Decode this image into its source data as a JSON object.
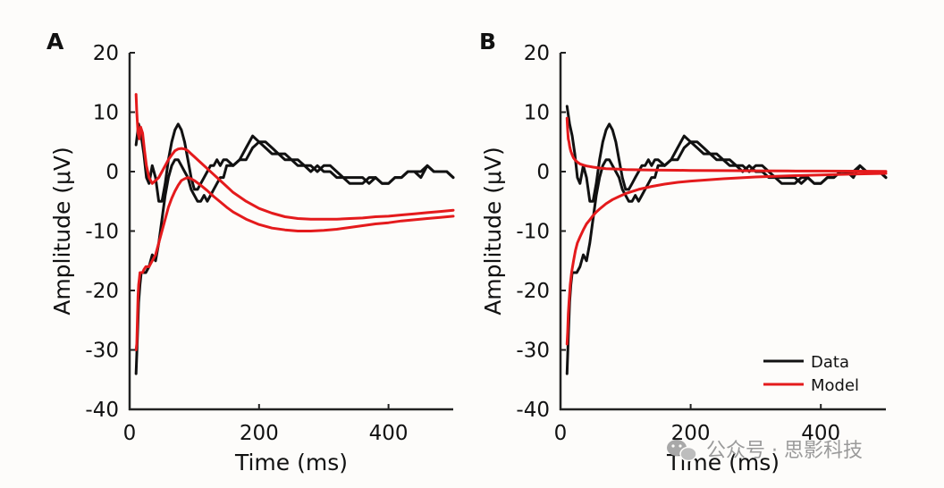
{
  "chart_data": [
    {
      "type": "line",
      "panel": "A",
      "xlabel": "Time (ms)",
      "ylabel": "Amplitude (μV)",
      "xlim": [
        0,
        500
      ],
      "ylim": [
        -40,
        20
      ],
      "xticks": [
        0,
        200,
        400
      ],
      "yticks": [
        20,
        10,
        0,
        -10,
        -20,
        -30,
        -40
      ],
      "series": [
        {
          "name": "Data",
          "color": "#111111",
          "x": [
            10,
            14,
            18,
            22,
            26,
            30,
            35,
            40,
            45,
            50,
            55,
            60,
            65,
            70,
            75,
            80,
            85,
            90,
            95,
            100,
            105,
            110,
            115,
            120,
            125,
            130,
            135,
            140,
            145,
            150,
            160,
            170,
            180,
            190,
            200,
            210,
            220,
            230,
            240,
            250,
            260,
            270,
            280,
            290,
            300,
            310,
            320,
            330,
            340,
            350,
            360,
            370,
            380,
            390,
            400,
            410,
            420,
            430,
            440,
            450,
            460,
            470,
            480,
            490,
            500
          ],
          "y": [
            4.5,
            8,
            6,
            3,
            -1,
            -2,
            1,
            -1,
            -5,
            -5,
            -2,
            2,
            5,
            7,
            8,
            7,
            5,
            2,
            -1,
            -3,
            -3,
            -2,
            -1,
            0,
            1,
            1,
            2,
            1,
            2,
            2,
            1,
            2,
            2,
            4,
            5,
            5,
            4,
            3,
            3,
            2,
            2,
            1,
            1,
            0,
            1,
            1,
            0,
            -1,
            -1,
            -1,
            -1,
            -2,
            -1,
            -2,
            -2,
            -1,
            -1,
            0,
            0,
            -1,
            1,
            0,
            0,
            0,
            -1
          ]
        },
        {
          "name": "Data",
          "color": "#111111",
          "x": [
            10,
            12,
            14,
            16,
            18,
            20,
            25,
            30,
            35,
            40,
            45,
            50,
            55,
            60,
            65,
            70,
            75,
            80,
            85,
            90,
            95,
            100,
            105,
            110,
            115,
            120,
            125,
            130,
            135,
            140,
            145,
            150,
            160,
            170,
            180,
            190,
            200,
            210,
            220,
            230,
            240,
            250,
            260,
            270,
            280,
            290,
            300,
            310,
            320,
            330,
            340,
            350,
            360,
            370,
            380,
            390,
            400,
            410,
            420,
            430,
            440,
            450,
            460,
            470,
            480,
            490,
            500
          ],
          "y": [
            -34,
            -28,
            -22,
            -19,
            -17,
            -17,
            -17,
            -16,
            -14,
            -15,
            -12,
            -8,
            -4,
            -1,
            1,
            2,
            2,
            1,
            0,
            -1,
            -3,
            -4,
            -5,
            -5,
            -4,
            -5,
            -4,
            -3,
            -2,
            -1,
            -1,
            1,
            1,
            2,
            4,
            6,
            5,
            4,
            3,
            3,
            2,
            2,
            1,
            1,
            0,
            1,
            0,
            0,
            -1,
            -1,
            -2,
            -2,
            -2,
            -1,
            -1,
            -2,
            -2,
            -1,
            -1,
            0,
            0,
            0,
            1,
            0,
            0,
            0,
            -1
          ]
        },
        {
          "name": "Model",
          "color": "#e41a1c",
          "x": [
            10,
            11,
            13,
            15,
            17,
            20,
            23,
            26,
            30,
            35,
            40,
            45,
            50,
            55,
            60,
            65,
            70,
            75,
            80,
            85,
            90,
            95,
            100,
            110,
            120,
            130,
            140,
            150,
            160,
            180,
            200,
            220,
            240,
            260,
            280,
            300,
            320,
            340,
            360,
            380,
            400,
            420,
            440,
            460,
            480,
            500
          ],
          "y": [
            13,
            10,
            6.5,
            5.5,
            7.5,
            6.5,
            3.5,
            1,
            -1,
            -2,
            -1.5,
            -1,
            0,
            1,
            2,
            2.8,
            3.5,
            3.8,
            3.9,
            3.8,
            3.5,
            3,
            2.5,
            1.5,
            0.5,
            -0.5,
            -1.5,
            -2.5,
            -3.5,
            -5,
            -6.2,
            -7,
            -7.6,
            -7.9,
            -8,
            -8,
            -8,
            -7.9,
            -7.8,
            -7.6,
            -7.5,
            -7.3,
            -7.1,
            -6.9,
            -6.7,
            -6.5
          ]
        },
        {
          "name": "Model",
          "color": "#e41a1c",
          "x": [
            10,
            11,
            12,
            13,
            14,
            15,
            16,
            18,
            20,
            22,
            25,
            30,
            35,
            40,
            45,
            50,
            55,
            60,
            65,
            70,
            75,
            80,
            85,
            90,
            95,
            100,
            110,
            120,
            130,
            140,
            150,
            160,
            180,
            200,
            220,
            240,
            260,
            280,
            300,
            320,
            340,
            360,
            380,
            400,
            420,
            440,
            460,
            480,
            500
          ],
          "y": [
            -30,
            -29,
            -25,
            -21,
            -19,
            -18,
            -17,
            -17,
            -17,
            -16.5,
            -16,
            -16,
            -15,
            -14,
            -12,
            -10,
            -8,
            -6,
            -4.5,
            -3.3,
            -2.3,
            -1.5,
            -1.2,
            -1,
            -1.2,
            -1.5,
            -2.3,
            -3.2,
            -4.2,
            -5.1,
            -6,
            -6.8,
            -8,
            -8.9,
            -9.5,
            -9.8,
            -10,
            -10,
            -9.9,
            -9.7,
            -9.4,
            -9.1,
            -8.8,
            -8.6,
            -8.3,
            -8.1,
            -7.9,
            -7.7,
            -7.5
          ]
        }
      ]
    },
    {
      "type": "line",
      "panel": "B",
      "xlabel": "Time (ms)",
      "ylabel": "Amplitude (μV)",
      "xlim": [
        0,
        500
      ],
      "ylim": [
        -40,
        20
      ],
      "xticks": [
        0,
        200,
        400
      ],
      "yticks": [
        20,
        10,
        0,
        -10,
        -20,
        -30,
        -40
      ],
      "legend": {
        "position": "bottom-right",
        "entries": [
          {
            "label": "Data",
            "color": "#111111"
          },
          {
            "label": "Model",
            "color": "#e41a1c"
          }
        ]
      },
      "series": [
        {
          "name": "Data",
          "color": "#111111",
          "x": [
            10,
            14,
            18,
            22,
            26,
            30,
            35,
            40,
            45,
            50,
            55,
            60,
            65,
            70,
            75,
            80,
            85,
            90,
            95,
            100,
            105,
            110,
            115,
            120,
            125,
            130,
            135,
            140,
            145,
            150,
            160,
            170,
            180,
            190,
            200,
            210,
            220,
            230,
            240,
            250,
            260,
            270,
            280,
            290,
            300,
            310,
            320,
            330,
            340,
            350,
            360,
            370,
            380,
            390,
            400,
            410,
            420,
            430,
            440,
            450,
            460,
            470,
            480,
            490,
            500
          ],
          "y": [
            11,
            8,
            6,
            3,
            -1,
            -2,
            1,
            -1,
            -5,
            -5,
            -2,
            2,
            5,
            7,
            8,
            7,
            5,
            2,
            -1,
            -3,
            -3,
            -2,
            -1,
            0,
            1,
            1,
            2,
            1,
            2,
            2,
            1,
            2,
            2,
            4,
            5,
            5,
            4,
            3,
            3,
            2,
            2,
            1,
            1,
            0,
            1,
            1,
            0,
            -1,
            -1,
            -1,
            -1,
            -2,
            -1,
            -2,
            -2,
            -1,
            -1,
            0,
            0,
            -1,
            1,
            0,
            0,
            0,
            -1
          ]
        },
        {
          "name": "Data",
          "color": "#111111",
          "x": [
            10,
            12,
            14,
            16,
            18,
            20,
            25,
            30,
            35,
            40,
            45,
            50,
            55,
            60,
            65,
            70,
            75,
            80,
            85,
            90,
            95,
            100,
            105,
            110,
            115,
            120,
            125,
            130,
            135,
            140,
            145,
            150,
            160,
            170,
            180,
            190,
            200,
            210,
            220,
            230,
            240,
            250,
            260,
            270,
            280,
            290,
            300,
            310,
            320,
            330,
            340,
            350,
            360,
            370,
            380,
            390,
            400,
            410,
            420,
            430,
            440,
            450,
            460,
            470,
            480,
            490,
            500
          ],
          "y": [
            -34,
            -28,
            -22,
            -19,
            -17,
            -17,
            -17,
            -16,
            -14,
            -15,
            -12,
            -8,
            -4,
            -1,
            1,
            2,
            2,
            1,
            0,
            -1,
            -3,
            -4,
            -5,
            -5,
            -4,
            -5,
            -4,
            -3,
            -2,
            -1,
            -1,
            1,
            1,
            2,
            4,
            6,
            5,
            4,
            3,
            3,
            2,
            2,
            1,
            1,
            0,
            1,
            0,
            0,
            -1,
            -1,
            -2,
            -2,
            -2,
            -1,
            -1,
            -2,
            -2,
            -1,
            -1,
            0,
            0,
            0,
            1,
            0,
            0,
            0,
            -1
          ]
        },
        {
          "name": "Model",
          "color": "#e41a1c",
          "x": [
            10,
            11,
            12,
            13,
            14,
            15,
            16,
            18,
            20,
            23,
            26,
            30,
            35,
            40,
            45,
            50,
            60,
            70,
            80,
            90,
            100,
            120,
            140,
            160,
            180,
            200,
            250,
            300,
            350,
            400,
            450,
            500
          ],
          "y": [
            9,
            7,
            5.5,
            5,
            4.3,
            3.8,
            3.4,
            2.8,
            2.3,
            1.9,
            1.6,
            1.3,
            1.1,
            0.95,
            0.85,
            0.75,
            0.6,
            0.5,
            0.45,
            0.4,
            0.35,
            0.3,
            0.27,
            0.24,
            0.22,
            0.2,
            0.16,
            0.13,
            0.11,
            0.09,
            0.07,
            0.05
          ]
        },
        {
          "name": "Model",
          "color": "#e41a1c",
          "x": [
            10,
            11,
            12,
            13,
            14,
            15,
            17,
            20,
            23,
            26,
            30,
            35,
            40,
            45,
            50,
            55,
            60,
            70,
            80,
            90,
            100,
            120,
            140,
            160,
            180,
            200,
            250,
            300,
            350,
            400,
            450,
            500
          ],
          "y": [
            -29,
            -27,
            -24,
            -22,
            -20.5,
            -19,
            -17,
            -15,
            -13.3,
            -12,
            -11,
            -9.8,
            -8.8,
            -8.1,
            -7.4,
            -6.8,
            -6.3,
            -5.4,
            -4.7,
            -4.2,
            -3.7,
            -3,
            -2.5,
            -2.1,
            -1.8,
            -1.6,
            -1.2,
            -0.9,
            -0.7,
            -0.55,
            -0.42,
            -0.3
          ]
        }
      ]
    }
  ],
  "watermark": {
    "text": "公众号 · 思影科技",
    "icon": "wechat-icon"
  }
}
